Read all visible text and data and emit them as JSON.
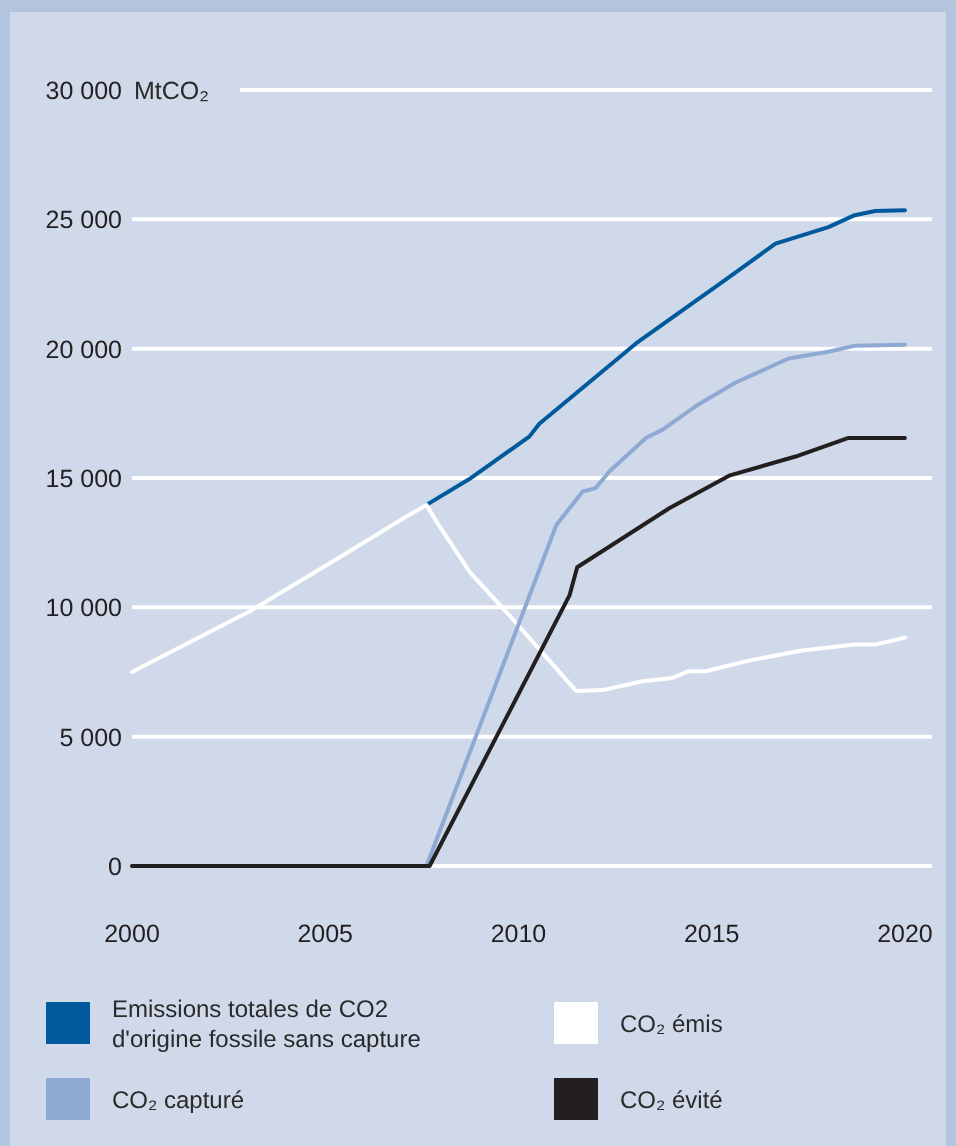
{
  "chart_data": {
    "type": "line",
    "ylabel": "MtCO₂",
    "xlim": [
      2000,
      2020.7
    ],
    "ylim": [
      0,
      30000
    ],
    "xticks": [
      2000,
      2005,
      2010,
      2015,
      2020
    ],
    "yticks": [
      0,
      {
        "value": 5000,
        "label": "5 000"
      },
      {
        "value": 10000,
        "label": "10 000"
      },
      {
        "value": 15000,
        "label": "15 000"
      },
      {
        "value": 20000,
        "label": "20 000"
      },
      {
        "value": 25000,
        "label": "25 000"
      },
      {
        "value": 30000,
        "label": "30 000"
      }
    ],
    "grid": "y",
    "legend": "bottom",
    "marker": "none",
    "line_style": "solid",
    "series": [
      {
        "name": "Emissions totales de CO2 d'origine fossile sans capture",
        "color": "#005a9c",
        "x": [
          2007.62,
          2008.72,
          2010.28,
          2010.54,
          2013.04,
          2015.27,
          2016.65,
          2018.02,
          2018.7,
          2019.23,
          2020
        ],
        "values": [
          13960,
          14950,
          16600,
          17100,
          20200,
          22570,
          24060,
          24700,
          25160,
          25320,
          25350
        ]
      },
      {
        "name": "CO₂ émis",
        "color": "#ffffff",
        "x": [
          2000,
          2003.06,
          2005.47,
          2007.02,
          2007.62,
          2007.88,
          2008.74,
          2009.77,
          2011.49,
          2012.18,
          2013.21,
          2013.98,
          2014.41,
          2014.84,
          2015.96,
          2017.34,
          2018.71,
          2019.23,
          2020
        ],
        "values": [
          7500,
          9860,
          12020,
          13440,
          13960,
          13310,
          11360,
          9680,
          6770,
          6800,
          7140,
          7270,
          7530,
          7530,
          7940,
          8330,
          8560,
          8560,
          8830
        ]
      },
      {
        "name": "CO₂ capturé",
        "color": "#8eaad2",
        "x": [
          2000,
          2007.62,
          2010.98,
          2011.66,
          2012.0,
          2012.35,
          2013.3,
          2013.72,
          2014.59,
          2015.62,
          2016.99,
          2018.02,
          2018.7,
          2020
        ],
        "values": [
          0,
          0,
          13180,
          14480,
          14610,
          15250,
          16550,
          16860,
          17780,
          18690,
          19620,
          19880,
          20110,
          20150
        ]
      },
      {
        "name": "CO₂ évité",
        "color": "#231f20",
        "x": [
          2000,
          2007.7,
          2011.32,
          2011.52,
          2013.9,
          2015.45,
          2017.17,
          2018.54,
          2020
        ],
        "values": [
          0,
          0,
          10460,
          11550,
          13830,
          15090,
          15830,
          16550,
          16550
        ]
      }
    ]
  }
}
